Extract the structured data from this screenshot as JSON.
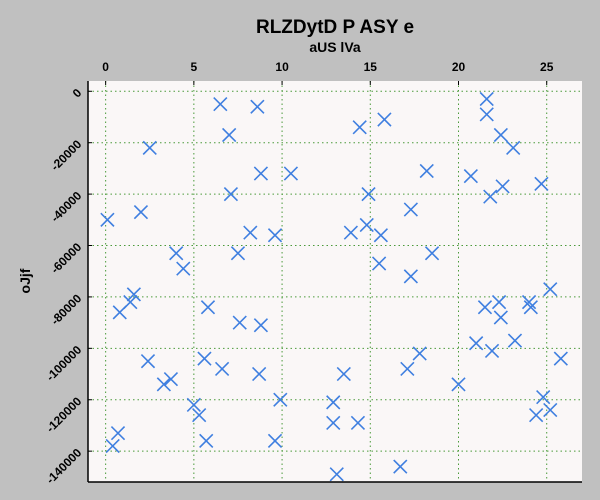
{
  "chart_data": {
    "type": "scatter",
    "title": "RLZDytD P ASY e",
    "xlabel": "aUS lVa",
    "ylabel": "oJjf",
    "x_axis_position": "top",
    "y_axis_inverted": true,
    "xlim": [
      -1,
      27
    ],
    "ylim": [
      4000,
      -152000
    ],
    "xticks": [
      0,
      5,
      10,
      15,
      20,
      25
    ],
    "yticks": [
      0,
      -20000,
      -40000,
      -60000,
      -80000,
      -100000,
      -120000,
      -140000
    ],
    "grid": true,
    "marker": "x",
    "colors": {
      "marker": "#3f7fe0",
      "page_background": "#c0c0c0",
      "plot_background": "#faf7f7",
      "grid": "#4a9a3a"
    },
    "series": [
      {
        "x": [
          0.1,
          0.4,
          0.7,
          0.8,
          1.4,
          1.6,
          2.0,
          2.4,
          2.5,
          3.3,
          3.7,
          4.0,
          4.4,
          5.0,
          5.3,
          5.6,
          5.7,
          5.8,
          6.5,
          6.6,
          7.0,
          7.1,
          7.5,
          7.6,
          8.2,
          8.6,
          8.7,
          8.8,
          8.8,
          9.6,
          9.6,
          9.9,
          10.5,
          12.9,
          12.9,
          13.1,
          13.5,
          13.9,
          14.3,
          14.4,
          14.8,
          14.9,
          15.5,
          15.6,
          15.8,
          16.7,
          17.1,
          17.3,
          17.3,
          17.8,
          18.2,
          18.5,
          20.0,
          20.7,
          21.0,
          21.5,
          21.6,
          21.6,
          21.8,
          21.9,
          22.3,
          22.4,
          22.4,
          22.5,
          23.1,
          23.2,
          24.0,
          24.1,
          24.4,
          24.7,
          24.8,
          25.2,
          25.2,
          25.8
        ],
        "y": [
          -50000,
          -138000,
          -133000,
          -86000,
          -82000,
          -79000,
          -47000,
          -105000,
          -22000,
          -114000,
          -112000,
          -63000,
          -69000,
          -122000,
          -126000,
          -104000,
          -136000,
          -84000,
          -5000,
          -108000,
          -17000,
          -40000,
          -63000,
          -90000,
          -55000,
          -6000,
          -110000,
          -32000,
          -91000,
          -56000,
          -136000,
          -120000,
          -32000,
          -121000,
          -129000,
          -149000,
          -110000,
          -55000,
          -129000,
          -14000,
          -52000,
          -40000,
          -67000,
          -56000,
          -11000,
          -146000,
          -108000,
          -72000,
          -46000,
          -102000,
          -31000,
          -63000,
          -114000,
          -33000,
          -98000,
          -84000,
          -3000,
          -9000,
          -41000,
          -101000,
          -82000,
          -17000,
          -88000,
          -37000,
          -22000,
          -97000,
          -82000,
          -84000,
          -126000,
          -36000,
          -119000,
          -77000,
          -124000,
          -104000
        ]
      }
    ]
  }
}
